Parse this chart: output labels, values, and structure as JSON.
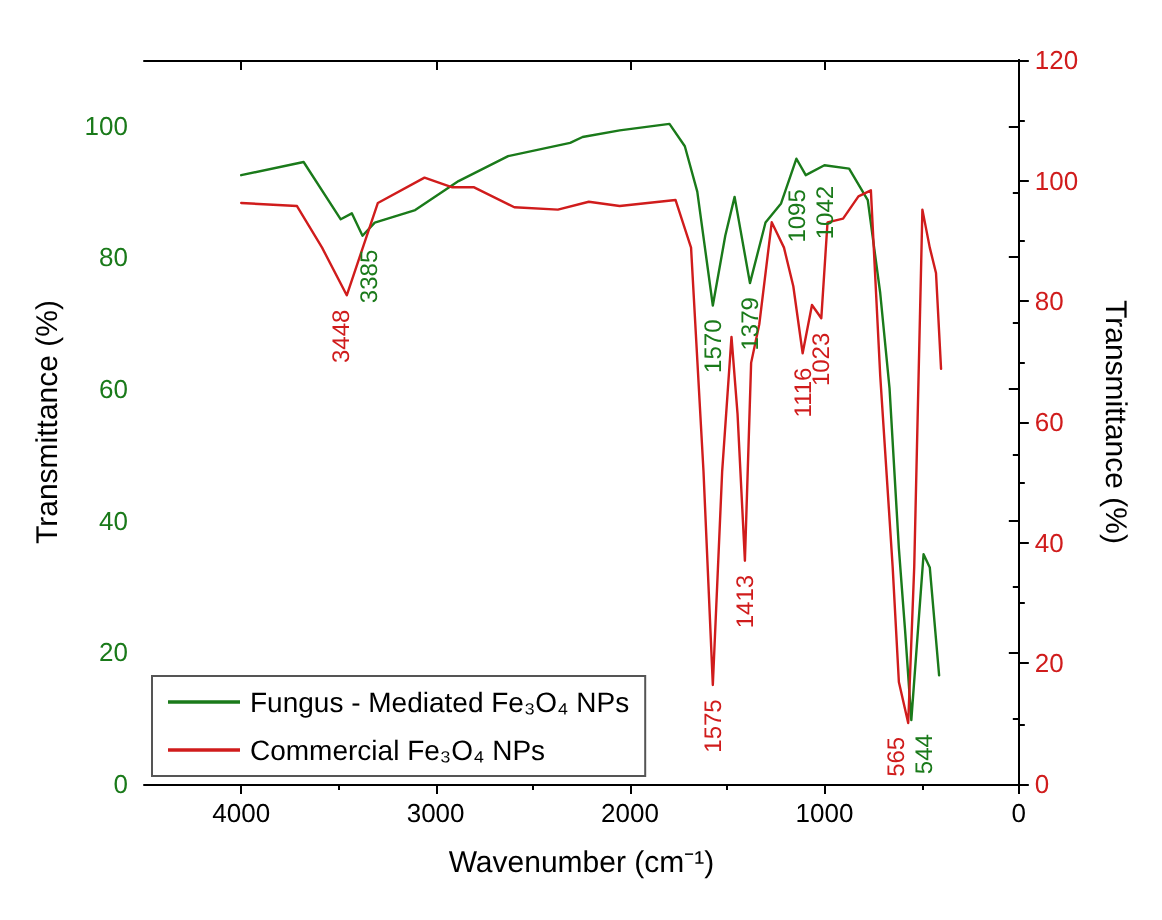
{
  "chart_data": {
    "type": "line",
    "xlabel": "Wavenumber (cm⁻¹)",
    "ylabel": "Transmittance (%)",
    "y2label": "Transmittance (%)",
    "xlim": [
      4500,
      0
    ],
    "xticks": [
      4000,
      3000,
      2000,
      1000,
      0
    ],
    "ylim": [
      0,
      110
    ],
    "yticks": [
      0,
      20,
      40,
      60,
      80,
      100
    ],
    "y2lim": [
      0,
      120
    ],
    "y2ticks": [
      0,
      20,
      40,
      60,
      80,
      100,
      120
    ],
    "legend": "bottom left",
    "grid": false,
    "marker": "none",
    "line_style": "solid",
    "series": [
      {
        "name": "Fungus - Mediated Fe₃O₄ NPs",
        "color": "#1a7a1a",
        "x": [
          4000,
          3679,
          3488,
          3431,
          3376,
          3313,
          3105,
          2882,
          2627,
          2308,
          2244,
          2053,
          1797,
          1718,
          1654,
          1574,
          1510,
          1462,
          1383,
          1303,
          1223,
          1144,
          1096,
          1000,
          873,
          777,
          713,
          665,
          617,
          585,
          553,
          490,
          458,
          410
        ],
        "values": [
          92.5,
          94.5,
          85.8,
          86.7,
          83.3,
          85.3,
          87.2,
          91.6,
          95.4,
          97.4,
          98.3,
          99.3,
          100.3,
          96.9,
          90,
          72.7,
          83.3,
          89.2,
          76.1,
          85.3,
          88.2,
          95,
          92.5,
          94,
          93.5,
          88.7,
          74.6,
          60.1,
          35.8,
          23.3,
          9.7,
          34.9,
          32.9,
          16.5
        ]
      },
      {
        "name": "Commercial Fe₃O₄ NPs",
        "color": "#d01c1c",
        "axis": "y2",
        "x": [
          4000,
          3713,
          3584,
          3457,
          3297,
          3057,
          2914,
          2802,
          2595,
          2371,
          2212,
          2053,
          1766,
          1686,
          1622,
          1574,
          1526,
          1478,
          1447,
          1409,
          1377,
          1335,
          1271,
          1208,
          1160,
          1112,
          1064,
          1016,
          984,
          904,
          825,
          761,
          713,
          649,
          617,
          569,
          538,
          496,
          458,
          426,
          400
        ],
        "values": [
          96.3,
          95.8,
          88.9,
          81,
          96.3,
          100.5,
          98.9,
          98.9,
          95.6,
          95.2,
          96.5,
          95.8,
          96.8,
          88.9,
          51.8,
          16.4,
          51.8,
          74.1,
          61.4,
          37,
          69.8,
          76.2,
          93.1,
          88.9,
          82.5,
          71.4,
          79.4,
          77.2,
          93.1,
          93.7,
          97.4,
          98.4,
          67.7,
          36,
          16.9,
          10.1,
          36,
          95.2,
          88.9,
          84.7,
          68.8
        ]
      }
    ],
    "annotations": [
      {
        "text": "3448",
        "x": 3457,
        "y": 74.2
      },
      {
        "text": "3385",
        "x": 3376,
        "y": 83.3
      },
      {
        "text": "1570",
        "x": 1574,
        "y": 72.7
      },
      {
        "text": "1379",
        "x": 1383,
        "y": 76.1
      },
      {
        "text": "1095",
        "x": 1096,
        "y": 92.5
      },
      {
        "text": "1042",
        "x": 1042,
        "y": 93
      },
      {
        "text": "1575",
        "x": 1574,
        "y": 15
      },
      {
        "text": "1413",
        "x": 1409,
        "y": 33.9
      },
      {
        "text": "1116",
        "x": 1112,
        "y": 65.4
      },
      {
        "text": "1023",
        "x": 1016,
        "y": 70.7
      },
      {
        "text": "565",
        "x": 569,
        "y": 9.3
      },
      {
        "text": "544",
        "x": 553,
        "y": 9.7
      }
    ]
  }
}
